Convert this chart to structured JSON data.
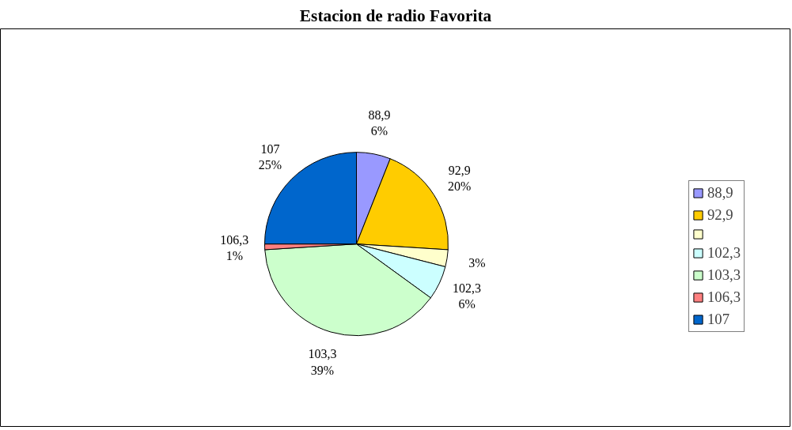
{
  "chart_data": {
    "type": "pie",
    "title": "Estacion de radio Favorita",
    "categories": [
      "88,9",
      "92,9",
      null,
      "102,3",
      "103,3",
      "106,3",
      "107"
    ],
    "values": [
      6,
      20,
      3,
      6,
      39,
      1,
      25
    ],
    "colors": [
      "#9999ff",
      "#ffcc00",
      "#ffffcc",
      "#ccffff",
      "#ccffcc",
      "#ff8080",
      "#0066cc"
    ],
    "value_labels": [
      "6%",
      "20%",
      "3%",
      "6%",
      "39%",
      "1%",
      "25%"
    ],
    "legend": "right"
  }
}
